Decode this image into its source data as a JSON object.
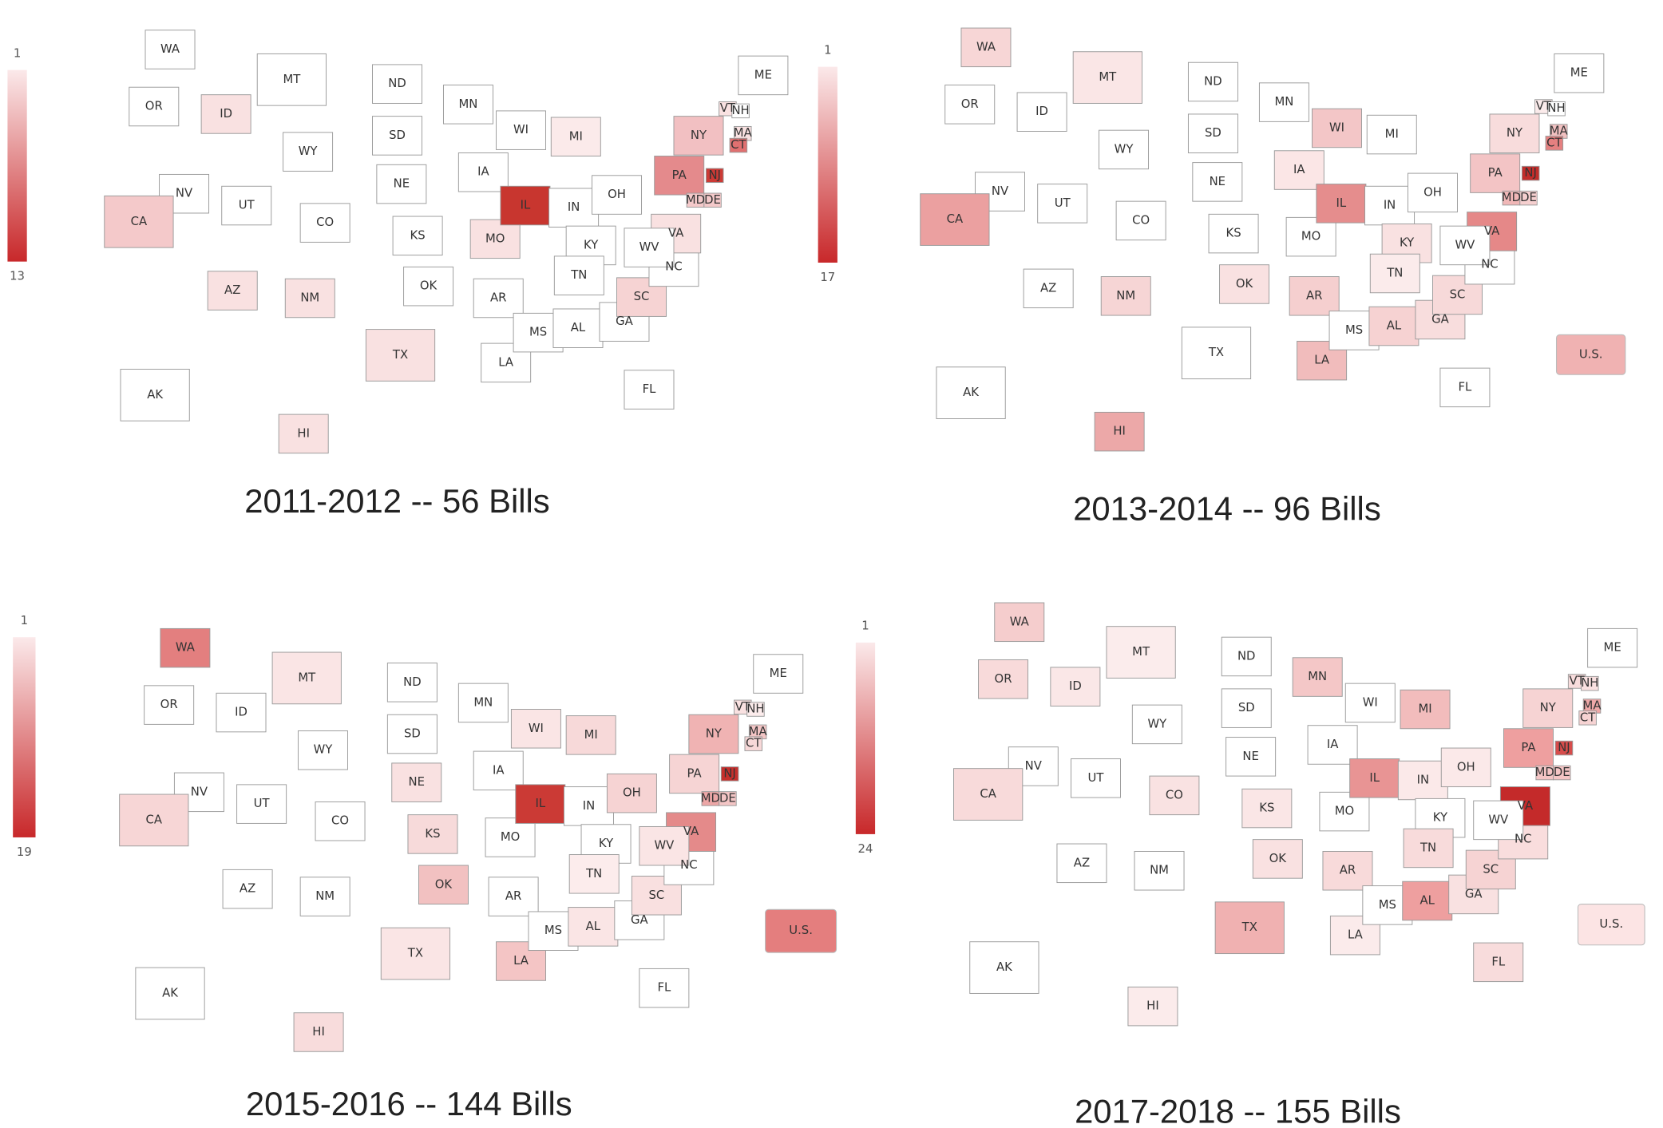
{
  "panels": [
    {
      "title": "2011-2012 -- 56 Bills",
      "legend": {
        "min_label": "1",
        "max_label": "13",
        "low_color": "#fbe9ea",
        "high_color": "#c8282a"
      },
      "states": [
        "WA",
        "OR",
        "ID",
        "MT",
        "WY",
        "NV",
        "UT",
        "CO",
        "CA",
        "AZ",
        "NM",
        "ND",
        "SD",
        "NE",
        "KS",
        "OK",
        "TX",
        "MN",
        "IA",
        "MO",
        "AR",
        "LA",
        "WI",
        "IL",
        "MI",
        "IN",
        "OH",
        "KY",
        "TN",
        "MS",
        "AL",
        "GA",
        "FL",
        "SC",
        "NC",
        "VA",
        "WV",
        "PA",
        "NY",
        "VT",
        "NH",
        "ME",
        "MA",
        "CT",
        "NJ",
        "DE",
        "MD",
        "AK",
        "HI"
      ],
      "colors": [
        "#ffffff",
        "#ffffff",
        "#f9e1e1",
        "#ffffff",
        "#ffffff",
        "#ffffff",
        "#ffffff",
        "#ffffff",
        "#f4c9ca",
        "#f9e1e1",
        "#f9e1e1",
        "#ffffff",
        "#ffffff",
        "#ffffff",
        "#ffffff",
        "#ffffff",
        "#f9e1e1",
        "#ffffff",
        "#ffffff",
        "#f9e1e1",
        "#ffffff",
        "#ffffff",
        "#ffffff",
        "#c8362f",
        "#fbeaea",
        "#ffffff",
        "#ffffff",
        "#ffffff",
        "#ffffff",
        "#ffffff",
        "#ffffff",
        "#ffffff",
        "#ffffff",
        "#f6d3d3",
        "#ffffff",
        "#f9e1e1",
        "#ffffff",
        "#e48a8c",
        "#f2c0c2",
        "#f9e1e1",
        "#ffffff",
        "#ffffff",
        "#f9e1e1",
        "#e07070",
        "#cc3a35",
        "#f4c9ca",
        "#f4c9ca",
        "#ffffff",
        "#f9e1e1"
      ]
    },
    {
      "title": "2013-2014 -- 96 Bills",
      "legend": {
        "min_label": "1",
        "max_label": "17",
        "low_color": "#fbe9ea",
        "high_color": "#c8282a"
      },
      "states": [
        "WA",
        "OR",
        "ID",
        "MT",
        "WY",
        "NV",
        "UT",
        "CO",
        "CA",
        "AZ",
        "NM",
        "ND",
        "SD",
        "NE",
        "KS",
        "OK",
        "TX",
        "MN",
        "IA",
        "MO",
        "AR",
        "LA",
        "WI",
        "IL",
        "MI",
        "IN",
        "OH",
        "KY",
        "TN",
        "MS",
        "AL",
        "GA",
        "FL",
        "SC",
        "NC",
        "VA",
        "WV",
        "PA",
        "NY",
        "VT",
        "NH",
        "ME",
        "MA",
        "CT",
        "NJ",
        "DE",
        "MD",
        "AK",
        "HI"
      ],
      "colors": [
        "#f7d6d6",
        "#ffffff",
        "#ffffff",
        "#fae6e6",
        "#ffffff",
        "#ffffff",
        "#ffffff",
        "#ffffff",
        "#eba0a0",
        "#ffffff",
        "#f6d5d5",
        "#ffffff",
        "#ffffff",
        "#ffffff",
        "#ffffff",
        "#f9e1e1",
        "#ffffff",
        "#ffffff",
        "#fbe6e6",
        "#ffffff",
        "#f5cfcf",
        "#f1bcbc",
        "#f3c6c7",
        "#e58d8d",
        "#ffffff",
        "#ffffff",
        "#ffffff",
        "#f9e1e1",
        "#fbebeb",
        "#ffffff",
        "#f6d2d2",
        "#f8dddd",
        "#ffffff",
        "#f7d9d9",
        "#ffffff",
        "#e58888",
        "#ffffff",
        "#f3c4c5",
        "#f8dcdc",
        "#fbebeb",
        "#ffffff",
        "#ffffff",
        "#f2c0c0",
        "#e58080",
        "#c22d2a",
        "#f5cfcf",
        "#f0b7b7",
        "#ffffff",
        "#eca8a8"
      ],
      "us_box": {
        "label": "U.S.",
        "color": "#f0b2b2"
      }
    },
    {
      "title": "2015-2016 -- 144 Bills",
      "legend": {
        "min_label": "1",
        "max_label": "19",
        "low_color": "#fbe9ea",
        "high_color": "#c8282a"
      },
      "states": [
        "WA",
        "OR",
        "ID",
        "MT",
        "WY",
        "NV",
        "UT",
        "CO",
        "CA",
        "AZ",
        "NM",
        "ND",
        "SD",
        "NE",
        "KS",
        "OK",
        "TX",
        "MN",
        "IA",
        "MO",
        "AR",
        "LA",
        "WI",
        "IL",
        "MI",
        "IN",
        "OH",
        "KY",
        "TN",
        "MS",
        "AL",
        "GA",
        "FL",
        "SC",
        "NC",
        "VA",
        "WV",
        "PA",
        "NY",
        "VT",
        "NH",
        "ME",
        "MA",
        "CT",
        "NJ",
        "DE",
        "MD",
        "AK",
        "HI"
      ],
      "colors": [
        "#e37f7f",
        "#ffffff",
        "#ffffff",
        "#fae5e5",
        "#ffffff",
        "#ffffff",
        "#ffffff",
        "#ffffff",
        "#f7d6d6",
        "#ffffff",
        "#ffffff",
        "#ffffff",
        "#ffffff",
        "#f9e1e1",
        "#f7dada",
        "#f2c1c1",
        "#fae5e5",
        "#ffffff",
        "#ffffff",
        "#ffffff",
        "#ffffff",
        "#f4c5c5",
        "#fae5e5",
        "#cb3a35",
        "#f7d9d9",
        "#ffffff",
        "#f6d3d3",
        "#ffffff",
        "#fcecec",
        "#ffffff",
        "#fae5e5",
        "#ffffff",
        "#ffffff",
        "#f9e0e0",
        "#ffffff",
        "#e48a8a",
        "#fae5e5",
        "#f6d4d4",
        "#f0b3b3",
        "#f9e1e1",
        "#fcecec",
        "#ffffff",
        "#f3c5c5",
        "#f7d8d8",
        "#c62f2c",
        "#f3c5c5",
        "#eca6a6",
        "#ffffff",
        "#f8dcdc"
      ],
      "us_box": {
        "label": "U.S.",
        "color": "#e47e7e"
      }
    },
    {
      "title": "2017-2018 -- 155 Bills",
      "legend": {
        "min_label": "1",
        "max_label": "24",
        "low_color": "#fbe9ea",
        "high_color": "#c8282a"
      },
      "states": [
        "WA",
        "OR",
        "ID",
        "MT",
        "WY",
        "NV",
        "UT",
        "CO",
        "CA",
        "AZ",
        "NM",
        "ND",
        "SD",
        "NE",
        "KS",
        "OK",
        "TX",
        "MN",
        "IA",
        "MO",
        "AR",
        "LA",
        "WI",
        "IL",
        "MI",
        "IN",
        "OH",
        "KY",
        "TN",
        "MS",
        "AL",
        "GA",
        "FL",
        "SC",
        "NC",
        "VA",
        "WV",
        "PA",
        "NY",
        "VT",
        "NH",
        "ME",
        "MA",
        "CT",
        "NJ",
        "DE",
        "MD",
        "AK",
        "HI"
      ],
      "colors": [
        "#f5cdcd",
        "#f8dada",
        "#fae7e7",
        "#fbecec",
        "#ffffff",
        "#ffffff",
        "#ffffff",
        "#f9e2e2",
        "#f8dada",
        "#ffffff",
        "#ffffff",
        "#ffffff",
        "#ffffff",
        "#ffffff",
        "#fae6e6",
        "#f9e1e1",
        "#f0b1b1",
        "#f4c7c7",
        "#ffffff",
        "#ffffff",
        "#f8dada",
        "#fbebeb",
        "#ffffff",
        "#e89494",
        "#f2bcbc",
        "#fbe9e9",
        "#fbe9e9",
        "#ffffff",
        "#f8dbdb",
        "#ffffff",
        "#ee9f9f",
        "#f9e1e1",
        "#f8dcdc",
        "#f6d3d3",
        "#f9dddd",
        "#c42a2a",
        "#ffffff",
        "#ee9f9f",
        "#f6d3d3",
        "#f8dcdc",
        "#f9e0e0",
        "#ffffff",
        "#efa8a8",
        "#f6d3d3",
        "#d74c4b",
        "#f4c5c5",
        "#f4c5c5",
        "#ffffff",
        "#fbebeb"
      ],
      "us_box": {
        "label": "U.S.",
        "color": "#fce4e4"
      }
    }
  ]
}
